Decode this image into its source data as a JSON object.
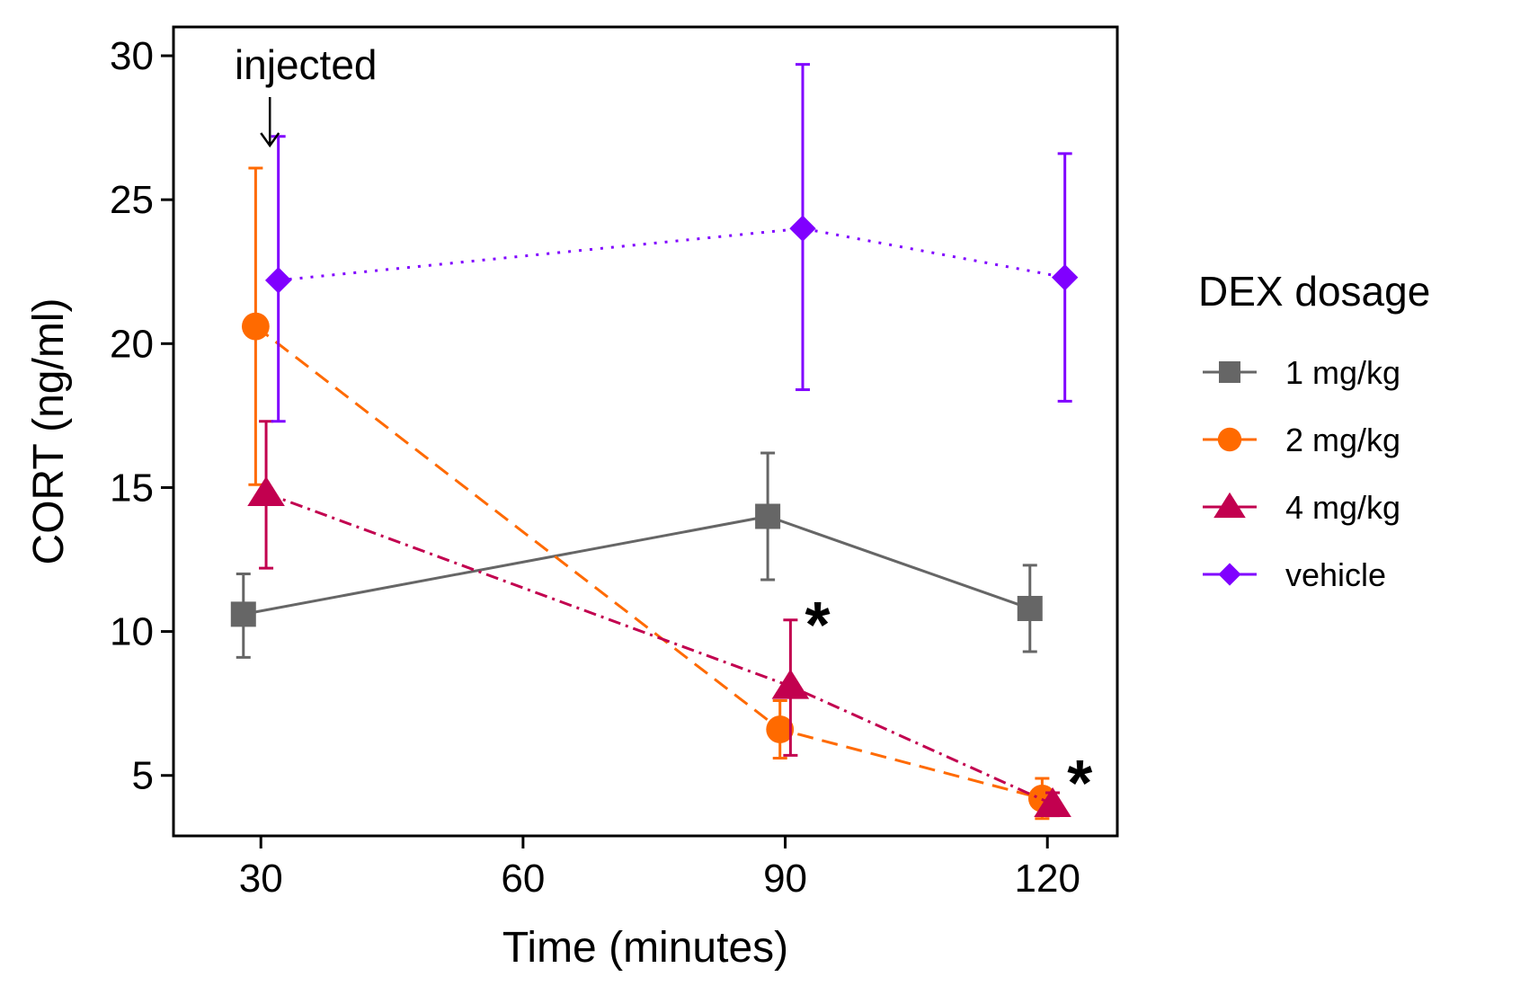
{
  "chart_data": {
    "type": "line",
    "xlabel": "Time (minutes)",
    "ylabel": "CORT (ng/ml)",
    "xlim": [
      20,
      128
    ],
    "ylim": [
      2.9,
      31
    ],
    "xticks": [
      30,
      60,
      90,
      120
    ],
    "yticks": [
      5,
      10,
      15,
      20,
      25,
      30
    ],
    "legend_title": "DEX dosage",
    "legend_position": "right",
    "grid": false,
    "series": [
      {
        "name": "1 mg/kg",
        "color": "#666666",
        "marker": "square",
        "linestyle": "solid",
        "x": [
          30,
          90,
          120
        ],
        "y": [
          10.6,
          14.0,
          10.8
        ],
        "err_low": [
          9.1,
          11.8,
          9.3
        ],
        "err_high": [
          12.0,
          16.2,
          12.3
        ]
      },
      {
        "name": "2 mg/kg",
        "color": "#ff6a00",
        "marker": "circle",
        "linestyle": "dashed",
        "x": [
          30,
          90,
          120
        ],
        "y": [
          20.6,
          6.6,
          4.2
        ],
        "err_low": [
          15.1,
          5.6,
          3.5
        ],
        "err_high": [
          26.1,
          7.6,
          4.9
        ]
      },
      {
        "name": "4 mg/kg",
        "color": "#c2004f",
        "marker": "triangle",
        "linestyle": "dashdot",
        "x": [
          30,
          90,
          120
        ],
        "y": [
          14.8,
          8.1,
          4.0
        ],
        "err_low": [
          12.2,
          5.7,
          3.6
        ],
        "err_high": [
          17.3,
          10.4,
          4.4
        ]
      },
      {
        "name": "vehicle",
        "color": "#8000ff",
        "marker": "diamond",
        "linestyle": "dotted",
        "x": [
          30,
          90,
          120
        ],
        "y": [
          22.2,
          24.0,
          22.3
        ],
        "err_low": [
          17.3,
          18.4,
          18.0
        ],
        "err_high": [
          27.2,
          29.7,
          26.6
        ]
      }
    ],
    "annotations": [
      {
        "text": "injected",
        "x": 30,
        "arrow": true
      },
      {
        "text": "*",
        "x": 90,
        "y": 10.4
      },
      {
        "text": "*",
        "x": 120,
        "y": 4.9
      }
    ]
  }
}
